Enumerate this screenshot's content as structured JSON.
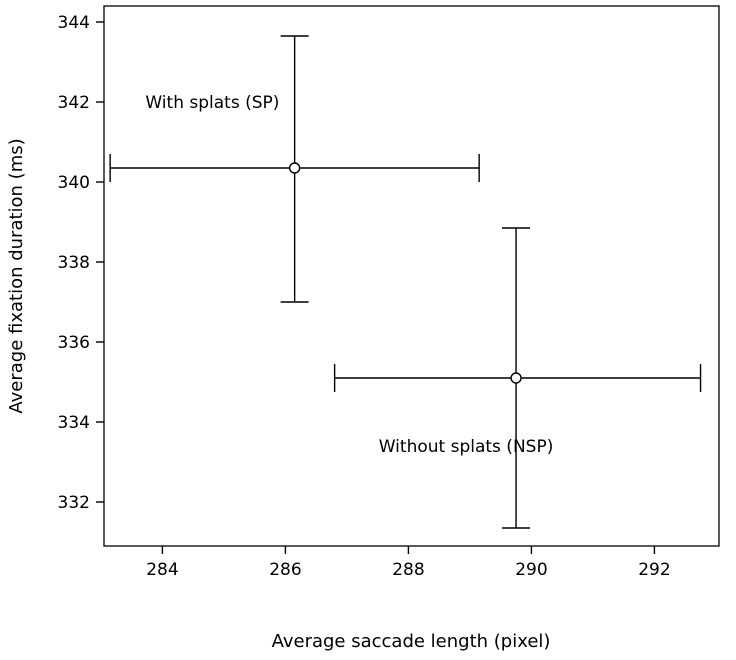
{
  "chart_data": {
    "type": "scatter",
    "title": "",
    "xlabel": "Average saccade length (pixel)",
    "ylabel": "Average fixation duration (ms)",
    "xlim": [
      283.05,
      293.05
    ],
    "ylim": [
      330.9,
      344.4
    ],
    "xticks": [
      284,
      286,
      288,
      290,
      292
    ],
    "yticks": [
      332,
      334,
      336,
      338,
      340,
      342,
      344
    ],
    "grid": false,
    "points": [
      {
        "label": "With splats (SP)",
        "x": 286.15,
        "y": 340.35,
        "x_err": [
          283.15,
          289.15
        ],
        "y_err": [
          337.0,
          343.65
        ]
      },
      {
        "label": "Without splats (NSP)",
        "x": 289.75,
        "y": 335.1,
        "x_err": [
          286.8,
          292.75
        ],
        "y_err": [
          331.35,
          338.85
        ]
      }
    ]
  }
}
